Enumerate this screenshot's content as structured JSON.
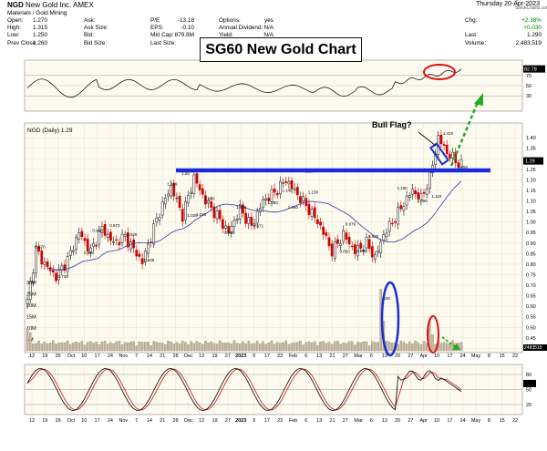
{
  "header": {
    "symbol": "NGD",
    "company": "New Gold Inc.",
    "exchange": "AMEX",
    "sector": "Materials / Gold Mining",
    "date": "Thursday 20-Apr-2023",
    "copyright": "© StockCharts.com"
  },
  "quote": {
    "col1": [
      [
        "Open:",
        "1.270"
      ],
      [
        "High:",
        "1.315"
      ],
      [
        "Low:",
        "1.250"
      ],
      [
        "Prev Close:",
        "1.260"
      ]
    ],
    "col2": [
      [
        "Ask:",
        ""
      ],
      [
        "Ask Size:",
        ""
      ],
      [
        "Bid:",
        ""
      ],
      [
        "Bid Size:",
        ""
      ]
    ],
    "col3": [
      [
        "P/E",
        "-13.18"
      ],
      [
        "EPS:",
        "-0.10"
      ],
      [
        "Mkt Cap:",
        "879.8M"
      ],
      [
        "Last Size:",
        ""
      ]
    ],
    "col4": [
      [
        "Options:",
        "yes"
      ],
      [
        "Annual Dividend:",
        "N/A"
      ],
      [
        "Yield:",
        "N/A"
      ],
      [
        "",
        ""
      ]
    ],
    "col5": [
      [
        "Chg:",
        "+2.38%"
      ],
      [
        "",
        "+0.030"
      ],
      [
        "Last:",
        "1.290"
      ],
      [
        "Volume:",
        "2,483,519"
      ]
    ]
  },
  "overlay": {
    "title": "SG60 New Gold Chart",
    "bull_flag": "Bull Flag?",
    "price_label": "NGD (Daily) 1.29"
  },
  "colors": {
    "background": "#fdfaf0",
    "rsi_line": "#000000",
    "price_candle_up": "#00a000",
    "price_candle_down": "#d00000",
    "sma": "#2c3a9a",
    "resistance_line": "#1c2bd8",
    "volume_ellipse": "#1c2bd8",
    "highlight_red": "#e01010",
    "arrow_green": "#22aa22",
    "stoch_fast": "#000000",
    "stoch_slow": "#d01010"
  },
  "chart_data": [
    {
      "type": "line",
      "name": "rsi",
      "y_ticks": [
        70,
        50,
        30
      ],
      "last_value_label": "82.78",
      "ylim": [
        0,
        100
      ]
    },
    {
      "type": "candlestick",
      "name": "price",
      "title": "NGD (Daily) 1.29",
      "ylim": [
        0.38,
        1.47
      ],
      "y_ticks": [
        "1.40",
        "1.35",
        "1.30",
        "1.25",
        "1.20",
        "1.15",
        "1.10",
        "1.05",
        "1.00",
        "0.95",
        "0.90",
        "0.85",
        "0.80",
        "0.75",
        "0.70",
        "0.65",
        "0.60",
        "0.55",
        "0.50",
        "0.45",
        "0.40"
      ],
      "last_value_label": "1.29",
      "annotations": [
        "0.870",
        "0.730",
        "0.842",
        "0.948",
        "0.972",
        "0.929",
        "0.808",
        "1.169",
        "1.20",
        "1.020",
        "1.100",
        "1.025",
        "0.939",
        "1.059",
        "0.971",
        "1.080",
        "1.140",
        "1.060",
        "1.20",
        "1.130",
        "0.979",
        "0.850",
        "0.920",
        "0.852",
        "0.626",
        "1.150",
        "1.090",
        "1.110",
        "1.410",
        "1.250"
      ],
      "resistance_level": 1.225,
      "bull_flag": {
        "high": 1.41,
        "low": 1.25
      }
    },
    {
      "type": "bar",
      "name": "volume",
      "y_ticks": [
        "30M",
        "25M",
        "20M",
        "15M",
        "10M",
        "5M"
      ],
      "last_value_label": "2483519"
    },
    {
      "type": "line",
      "name": "stochastics",
      "y_ticks": [
        80,
        50,
        20
      ],
      "ylim": [
        0,
        100
      ]
    }
  ],
  "x_axis": {
    "labels": [
      "12",
      "19",
      "26",
      "Oct",
      "10",
      "17",
      "24",
      "Nov",
      "7",
      "14",
      "21",
      "28",
      "Dec",
      "12",
      "19",
      "27",
      "2023",
      "9",
      "17",
      "23",
      "Feb",
      "6",
      "13",
      "21",
      "27",
      "Mar",
      "6",
      "13",
      "20",
      "27",
      "Apr",
      "10",
      "17",
      "24",
      "May",
      "8",
      "15",
      "22"
    ]
  }
}
